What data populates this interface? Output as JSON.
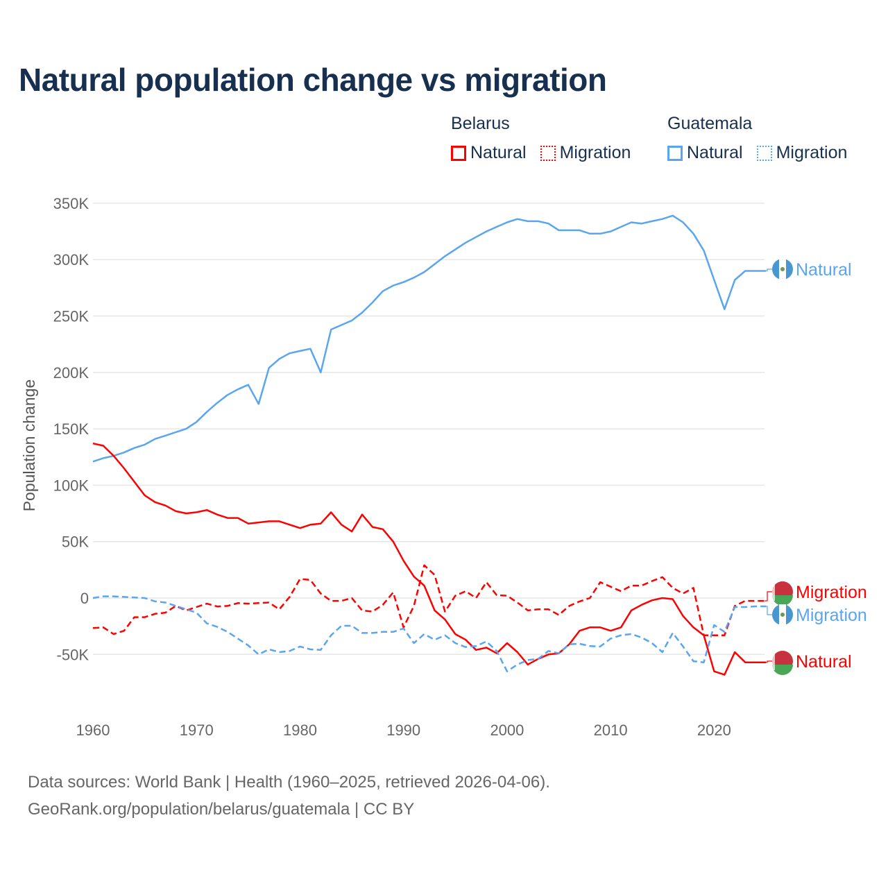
{
  "chart_data": {
    "type": "line",
    "title": "Natural population change vs migration",
    "xlabel": "",
    "ylabel": "Population change",
    "xlim": [
      1960,
      2025
    ],
    "ylim": [
      -70000,
      350000
    ],
    "grid": true,
    "x_ticks": [
      1960,
      1970,
      1980,
      1990,
      2000,
      2010,
      2020
    ],
    "x_tick_labels": [
      "1960",
      "1970",
      "1980",
      "1990",
      "2000",
      "2010",
      "2020"
    ],
    "y_ticks": [
      350000,
      300000,
      250000,
      200000,
      150000,
      100000,
      50000,
      0,
      -50000
    ],
    "y_tick_labels": [
      "350K",
      "300K",
      "250K",
      "200K",
      "150K",
      "100K",
      "50K",
      "0",
      "-50K"
    ],
    "legend": {
      "placement": "top-right",
      "groups": [
        {
          "name": "Belarus",
          "items": [
            {
              "label": "Natural",
              "style": "solid",
              "color": "#ff0000"
            },
            {
              "label": "Migration",
              "style": "dotted",
              "color": "#ff0000"
            }
          ]
        },
        {
          "name": "Guatemala",
          "items": [
            {
              "label": "Natural",
              "style": "solid",
              "color": "#5aa5ef"
            },
            {
              "label": "Migration",
              "style": "dotted",
              "color": "#5aa5ef"
            }
          ]
        }
      ]
    },
    "x": [
      1960,
      1961,
      1962,
      1963,
      1964,
      1965,
      1966,
      1967,
      1968,
      1969,
      1970,
      1971,
      1972,
      1973,
      1974,
      1975,
      1976,
      1977,
      1978,
      1979,
      1980,
      1981,
      1982,
      1983,
      1984,
      1985,
      1986,
      1987,
      1988,
      1989,
      1990,
      1991,
      1992,
      1993,
      1994,
      1995,
      1996,
      1997,
      1998,
      1999,
      2000,
      2001,
      2002,
      2003,
      2004,
      2005,
      2006,
      2007,
      2008,
      2009,
      2010,
      2011,
      2012,
      2013,
      2014,
      2015,
      2016,
      2017,
      2018,
      2019,
      2020,
      2021,
      2022,
      2023,
      2024,
      2025
    ],
    "series": [
      {
        "name": "Guatemala Natural",
        "country": "Guatemala",
        "end_label": "Natural",
        "color": "#5aa5ef",
        "dash": "solid",
        "values": [
          121000,
          124000,
          126000,
          129000,
          133000,
          136000,
          141000,
          144000,
          147000,
          150000,
          156000,
          165000,
          173000,
          180000,
          185000,
          189000,
          172000,
          204000,
          212000,
          217000,
          219000,
          221000,
          200000,
          238000,
          242000,
          246000,
          253000,
          262000,
          272000,
          277000,
          280000,
          284000,
          289000,
          296000,
          303000,
          309000,
          315000,
          320000,
          325000,
          329000,
          333000,
          336000,
          334000,
          334000,
          332000,
          326000,
          326000,
          326000,
          323000,
          323000,
          325000,
          329000,
          333000,
          332000,
          334000,
          336000,
          339000,
          333000,
          323000,
          308000,
          282000,
          256000,
          282000,
          290000,
          290000,
          290000
        ]
      },
      {
        "name": "Belarus Natural",
        "country": "Belarus",
        "end_label": "Natural",
        "color": "#ff0000",
        "dash": "solid",
        "values": [
          137000,
          135000,
          126000,
          115000,
          103000,
          91000,
          85000,
          82000,
          77000,
          75000,
          76000,
          78000,
          74000,
          71000,
          71000,
          66000,
          67000,
          68000,
          68000,
          65000,
          62000,
          65000,
          66000,
          76000,
          65000,
          59000,
          74000,
          63000,
          61000,
          50000,
          33000,
          19000,
          11000,
          -11000,
          -19000,
          -32000,
          -37000,
          -46000,
          -44000,
          -49000,
          -40000,
          -48000,
          -59000,
          -54000,
          -50000,
          -49000,
          -41000,
          -29000,
          -26000,
          -26000,
          -29000,
          -26000,
          -11000,
          -6000,
          -2000,
          0,
          -1000,
          -16000,
          -26000,
          -33000,
          -65000,
          -68000,
          -48000,
          -57000,
          -57000,
          -57000
        ]
      },
      {
        "name": "Belarus Migration",
        "country": "Belarus",
        "end_label": "Migration",
        "color": "#ff0000",
        "dash": "dashed",
        "values": [
          -26600,
          -26000,
          -32000,
          -29000,
          -17000,
          -17000,
          -14000,
          -13000,
          -7000,
          -11000,
          -8000,
          -5000,
          -7500,
          -7000,
          -4500,
          -5000,
          -4500,
          -4000,
          -10000,
          1000,
          17000,
          16000,
          4000,
          -2500,
          -2500,
          0,
          -11000,
          -12000,
          -6000,
          5000,
          -26000,
          -7000,
          29000,
          20500,
          -12000,
          2000,
          6000,
          0,
          14000,
          2500,
          2000,
          -4000,
          -11000,
          -10000,
          -10000,
          -15000,
          -7000,
          -3000,
          0,
          14000,
          10000,
          6000,
          11000,
          11000,
          15000,
          18500,
          9000,
          4000,
          9000,
          -33000,
          -33000,
          -33000,
          -7000,
          -2500,
          -2500,
          -2500
        ]
      },
      {
        "name": "Guatemala Migration",
        "country": "Guatemala",
        "end_label": "Migration",
        "color": "#5aa5ef",
        "dash": "dashed",
        "values": [
          0,
          1500,
          1500,
          1000,
          500,
          0,
          -3000,
          -4000,
          -7000,
          -10000,
          -13000,
          -22500,
          -25600,
          -30000,
          -36000,
          -42000,
          -50000,
          -45500,
          -48000,
          -47000,
          -43000,
          -45500,
          -46000,
          -33000,
          -24600,
          -24600,
          -31000,
          -31000,
          -30000,
          -30000,
          -27000,
          -40000,
          -32000,
          -37000,
          -33000,
          -40000,
          -43500,
          -42600,
          -38500,
          -47000,
          -65000,
          -59000,
          -55000,
          -54000,
          -47000,
          -49000,
          -41000,
          -40500,
          -42600,
          -43000,
          -36000,
          -33000,
          -32000,
          -35000,
          -40000,
          -48000,
          -31000,
          -43000,
          -56000,
          -57000,
          -24000,
          -30000,
          -8000,
          -8000,
          -7400,
          -7400
        ]
      }
    ]
  },
  "footer": {
    "line1": "Data sources: World Bank | Health (1960–2025, retrieved 2026-04-06).",
    "line2": "GeoRank.org/population/belarus/guatemala | CC BY"
  }
}
